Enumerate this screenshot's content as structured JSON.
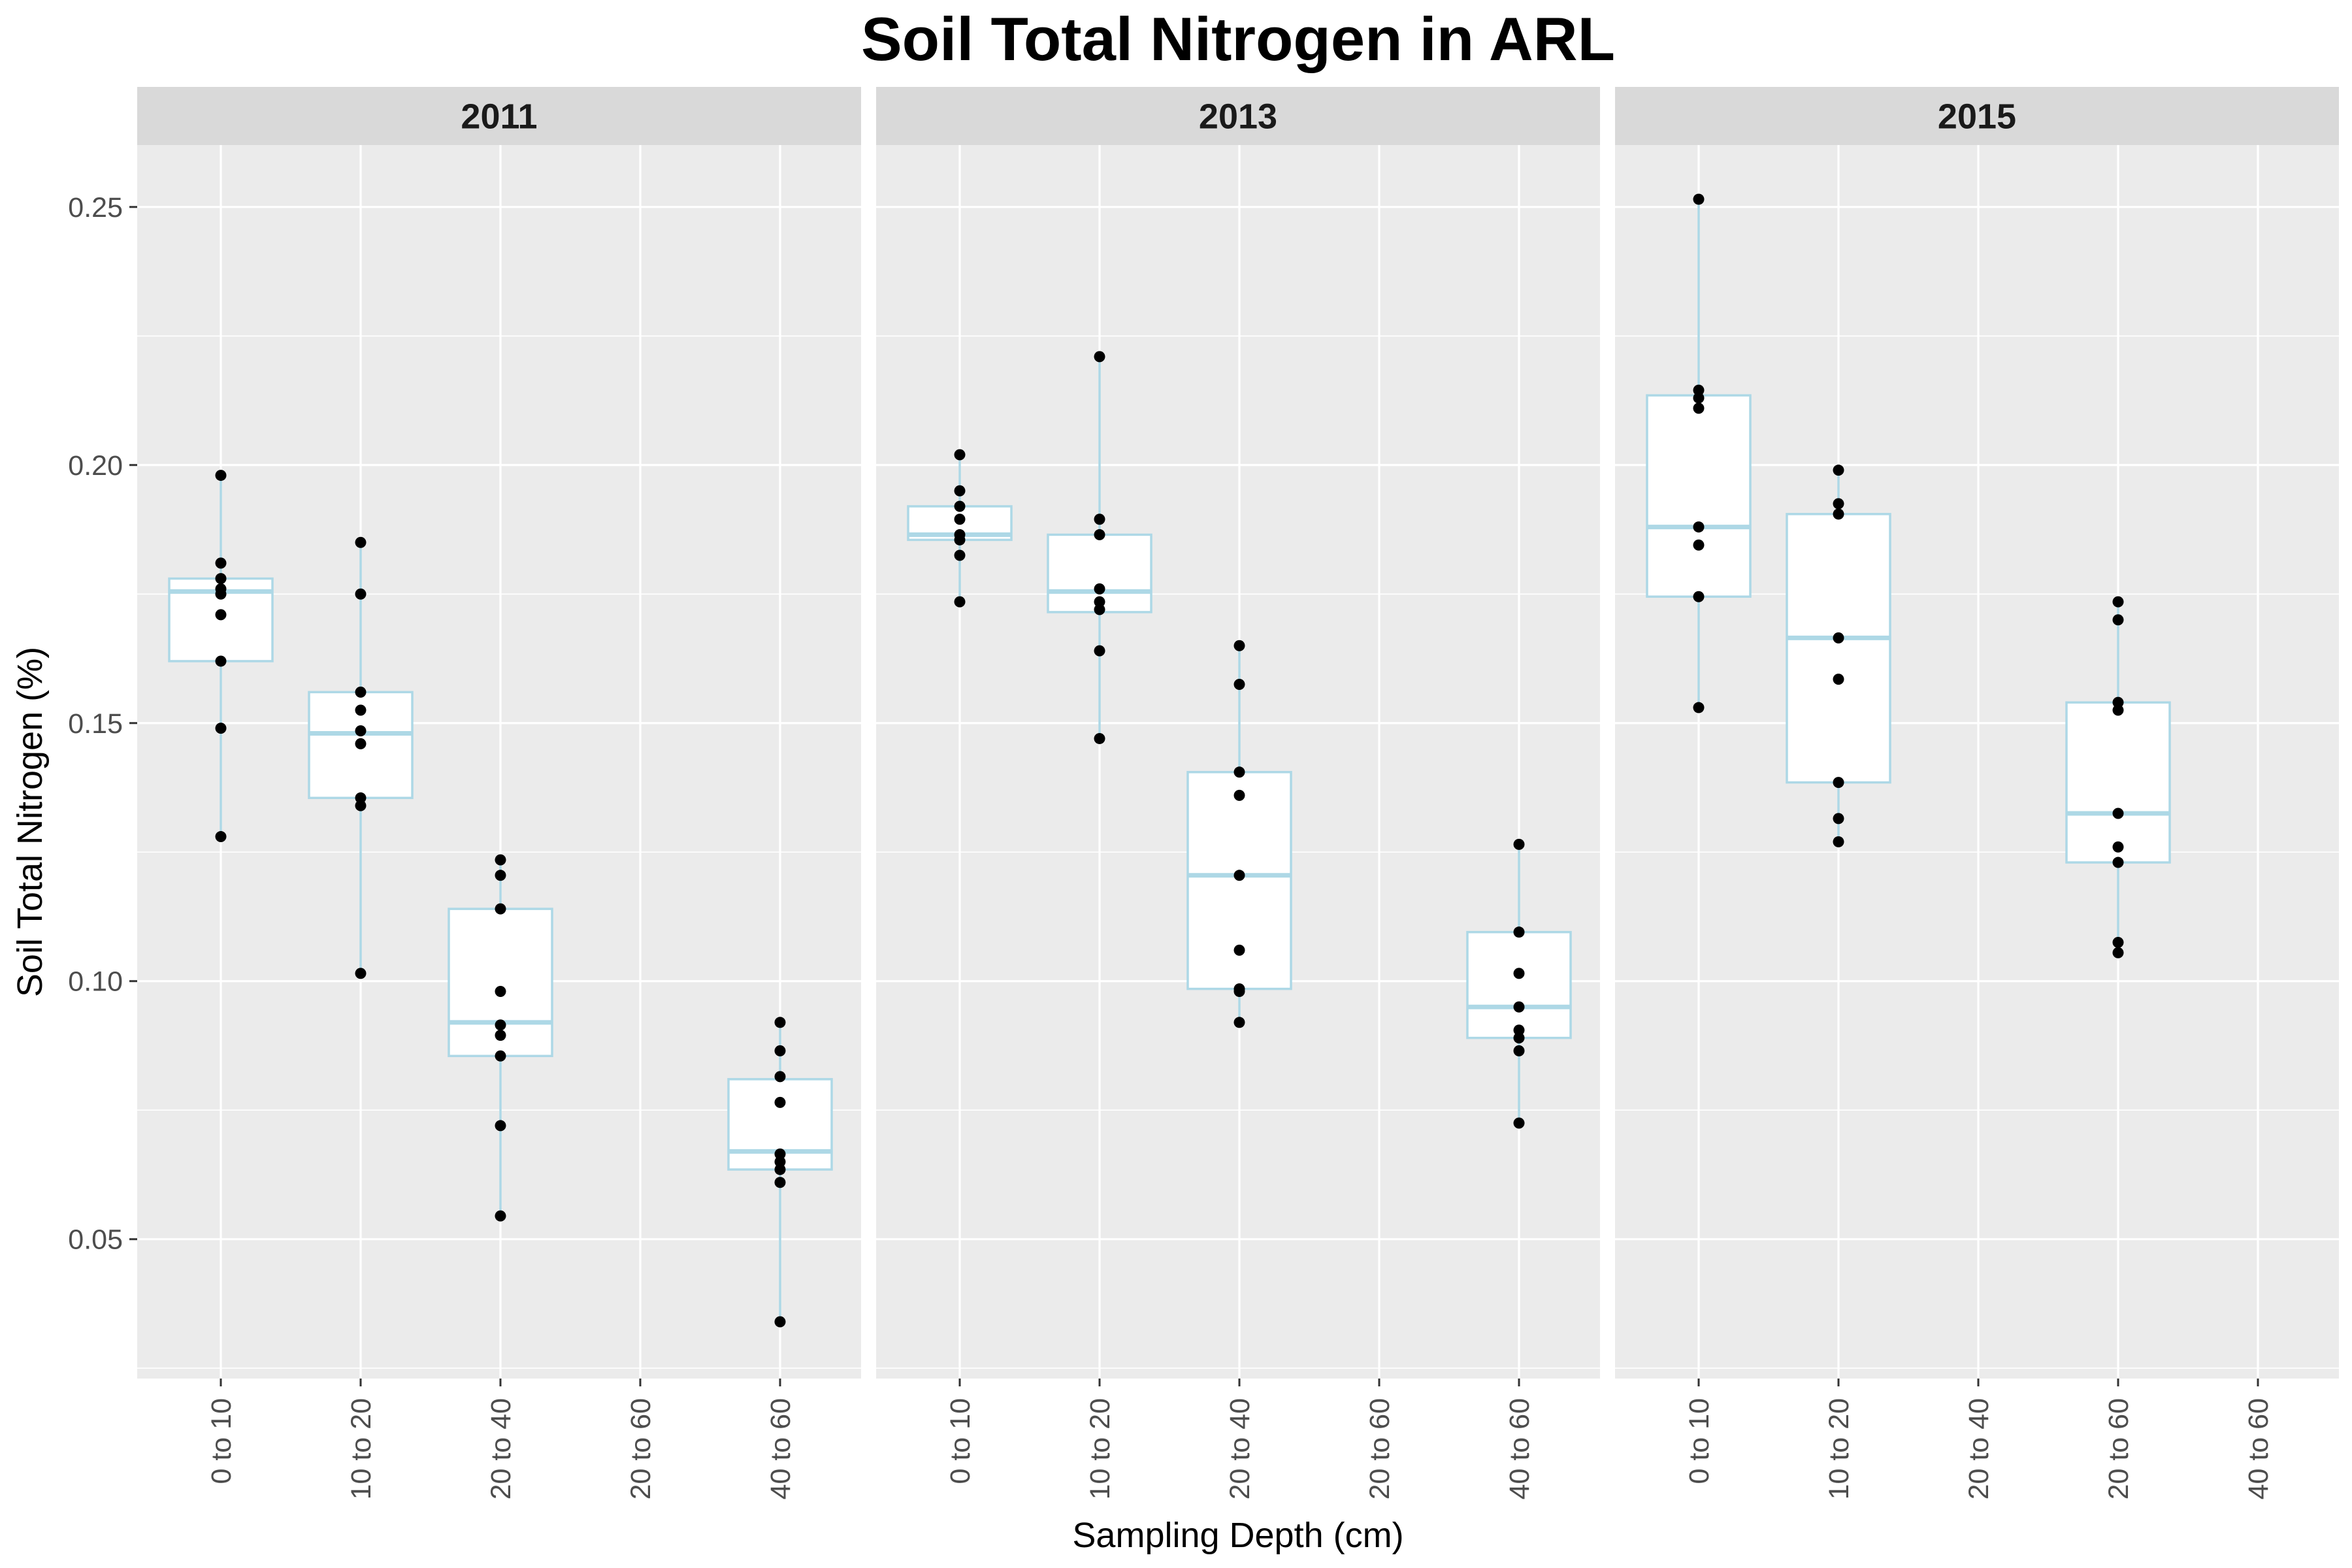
{
  "chart_data": {
    "type": "boxplot",
    "title": "Soil Total Nitrogen in ARL",
    "xlabel": "Sampling Depth (cm)",
    "ylabel": "Soil Total Nitrogen (%)",
    "ylim": [
      0.023,
      0.262
    ],
    "yticks": [
      0.05,
      0.1,
      0.15,
      0.2,
      0.25
    ],
    "ytick_labels": [
      "0.05",
      "0.10",
      "0.15",
      "0.20",
      "0.25"
    ],
    "box_color": "#add8e6",
    "point_color": "#000000",
    "panel_background": "#ebebeb",
    "strip_background": "#d9d9d9",
    "grid": true,
    "legend": "none",
    "panels": [
      {
        "facet": "2011",
        "categories": [
          "0 to 10",
          "10 to 20",
          "20 to 40",
          "20 to 60",
          "40 to 60"
        ],
        "boxes": [
          {
            "category": "0 to 10",
            "min": 0.128,
            "q1": 0.162,
            "median": 0.1755,
            "q3": 0.178,
            "max": 0.198,
            "points": [
              0.198,
              0.181,
              0.178,
              0.176,
              0.175,
              0.171,
              0.162,
              0.149,
              0.128
            ]
          },
          {
            "category": "10 to 20",
            "min": 0.1015,
            "q1": 0.1355,
            "median": 0.148,
            "q3": 0.156,
            "max": 0.185,
            "points": [
              0.185,
              0.175,
              0.156,
              0.1525,
              0.1485,
              0.146,
              0.1355,
              0.134,
              0.1015
            ]
          },
          {
            "category": "20 to 40",
            "min": 0.0545,
            "q1": 0.0855,
            "median": 0.092,
            "q3": 0.114,
            "max": 0.1235,
            "points": [
              0.1235,
              0.1205,
              0.114,
              0.098,
              0.0915,
              0.0895,
              0.0855,
              0.072,
              0.0545
            ]
          },
          {
            "category": "40 to 60",
            "min": 0.034,
            "q1": 0.0635,
            "median": 0.067,
            "q3": 0.081,
            "max": 0.092,
            "points": [
              0.092,
              0.0865,
              0.0815,
              0.0765,
              0.0665,
              0.065,
              0.0635,
              0.061,
              0.034
            ]
          }
        ]
      },
      {
        "facet": "2013",
        "categories": [
          "0 to 10",
          "10 to 20",
          "20 to 40",
          "20 to 60",
          "40 to 60"
        ],
        "boxes": [
          {
            "category": "0 to 10",
            "min": 0.1735,
            "q1": 0.1855,
            "median": 0.1865,
            "q3": 0.192,
            "max": 0.202,
            "points": [
              0.202,
              0.195,
              0.192,
              0.1895,
              0.1865,
              0.1855,
              0.1825,
              0.1735
            ]
          },
          {
            "category": "10 to 20",
            "min": 0.147,
            "q1": 0.1715,
            "median": 0.1755,
            "q3": 0.1865,
            "max": 0.221,
            "points": [
              0.221,
              0.1895,
              0.1865,
              0.176,
              0.1735,
              0.172,
              0.164,
              0.147
            ]
          },
          {
            "category": "20 to 40",
            "min": 0.092,
            "q1": 0.0985,
            "median": 0.1205,
            "q3": 0.1405,
            "max": 0.165,
            "points": [
              0.165,
              0.1575,
              0.1405,
              0.136,
              0.1205,
              0.106,
              0.0985,
              0.098,
              0.092
            ]
          },
          {
            "category": "40 to 60",
            "min": 0.0725,
            "q1": 0.089,
            "median": 0.095,
            "q3": 0.1095,
            "max": 0.1265,
            "points": [
              0.1265,
              0.1095,
              0.1015,
              0.095,
              0.0905,
              0.089,
              0.0865,
              0.0725
            ]
          }
        ]
      },
      {
        "facet": "2015",
        "categories": [
          "0 to 10",
          "10 to 20",
          "20 to 40",
          "20 to 60",
          "40 to 60"
        ],
        "boxes": [
          {
            "category": "0 to 10",
            "min": 0.153,
            "q1": 0.1745,
            "median": 0.188,
            "q3": 0.2135,
            "max": 0.2515,
            "points": [
              0.2515,
              0.2145,
              0.213,
              0.211,
              0.188,
              0.1845,
              0.1745,
              0.153
            ]
          },
          {
            "category": "10 to 20",
            "min": 0.127,
            "q1": 0.1385,
            "median": 0.1665,
            "q3": 0.1905,
            "max": 0.199,
            "points": [
              0.199,
              0.1925,
              0.1905,
              0.1665,
              0.1585,
              0.1385,
              0.1315,
              0.127
            ]
          },
          {
            "category": "20 to 60",
            "min": 0.1055,
            "q1": 0.123,
            "median": 0.1325,
            "q3": 0.154,
            "max": 0.1735,
            "points": [
              0.1735,
              0.17,
              0.154,
              0.1525,
              0.1325,
              0.126,
              0.123,
              0.1075,
              0.1055
            ]
          }
        ]
      }
    ]
  }
}
